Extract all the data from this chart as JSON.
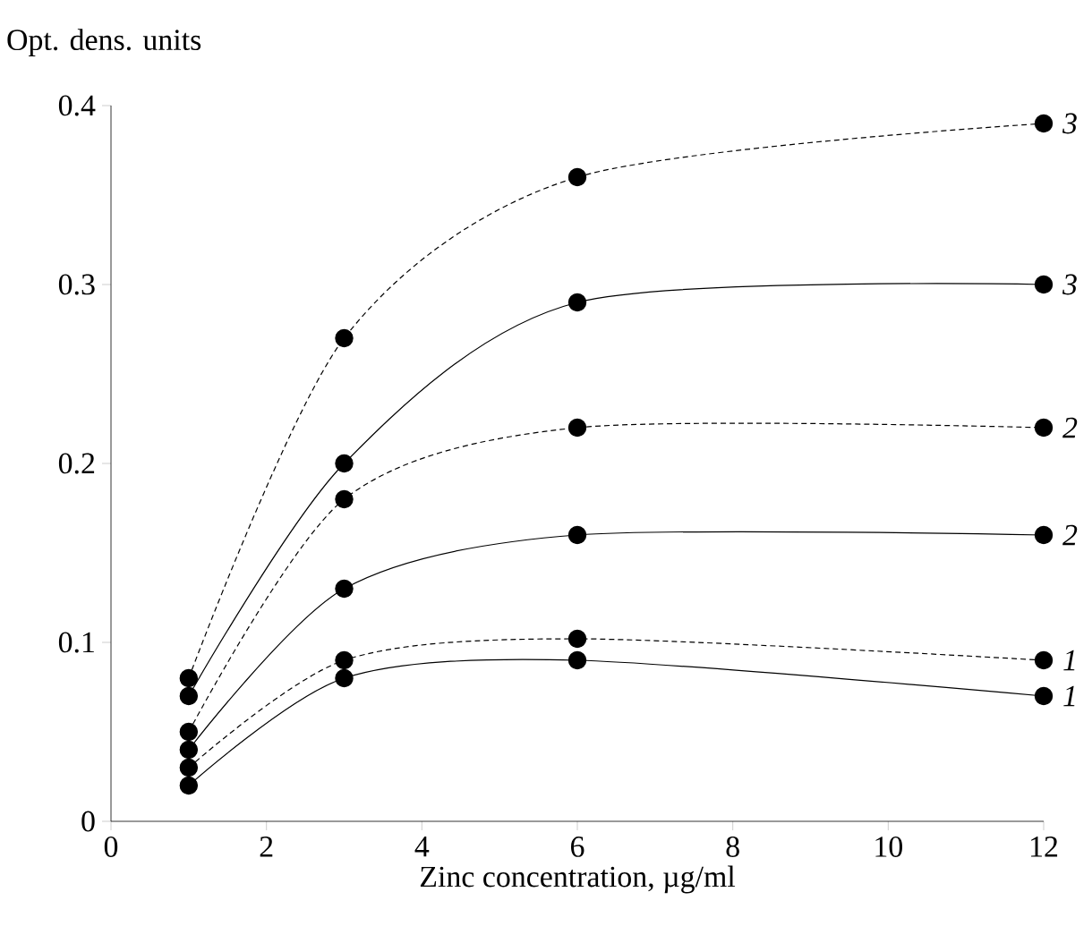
{
  "chart_data": {
    "type": "line",
    "xlabel": "Zinc concentration, µg/ml",
    "ylabel": "Opt. dens. units",
    "x": [
      1,
      3,
      6,
      12
    ],
    "series": [
      {
        "name": "3",
        "color": "#000000",
        "line_style": "dashed",
        "values": [
          0.08,
          0.27,
          0.36,
          0.39
        ]
      },
      {
        "name": "3",
        "color": "#000000",
        "line_style": "solid",
        "values": [
          0.07,
          0.2,
          0.29,
          0.3
        ]
      },
      {
        "name": "2",
        "color": "#000000",
        "line_style": "dashed",
        "values": [
          0.05,
          0.18,
          0.22,
          0.22
        ]
      },
      {
        "name": "2",
        "color": "#000000",
        "line_style": "solid",
        "values": [
          0.04,
          0.13,
          0.16,
          0.16
        ]
      },
      {
        "name": "1",
        "color": "#000000",
        "line_style": "dashed",
        "values": [
          0.03,
          0.09,
          0.102,
          0.09
        ]
      },
      {
        "name": "1",
        "color": "#000000",
        "line_style": "solid",
        "values": [
          0.02,
          0.08,
          0.09,
          0.07
        ]
      }
    ],
    "xlim": [
      0,
      12
    ],
    "ylim": [
      0,
      0.4
    ],
    "xticks": [
      0,
      2,
      4,
      6,
      8,
      10,
      12
    ],
    "yticks": [
      0,
      0.1,
      0.2,
      0.3,
      0.4
    ],
    "marker": "circle"
  }
}
